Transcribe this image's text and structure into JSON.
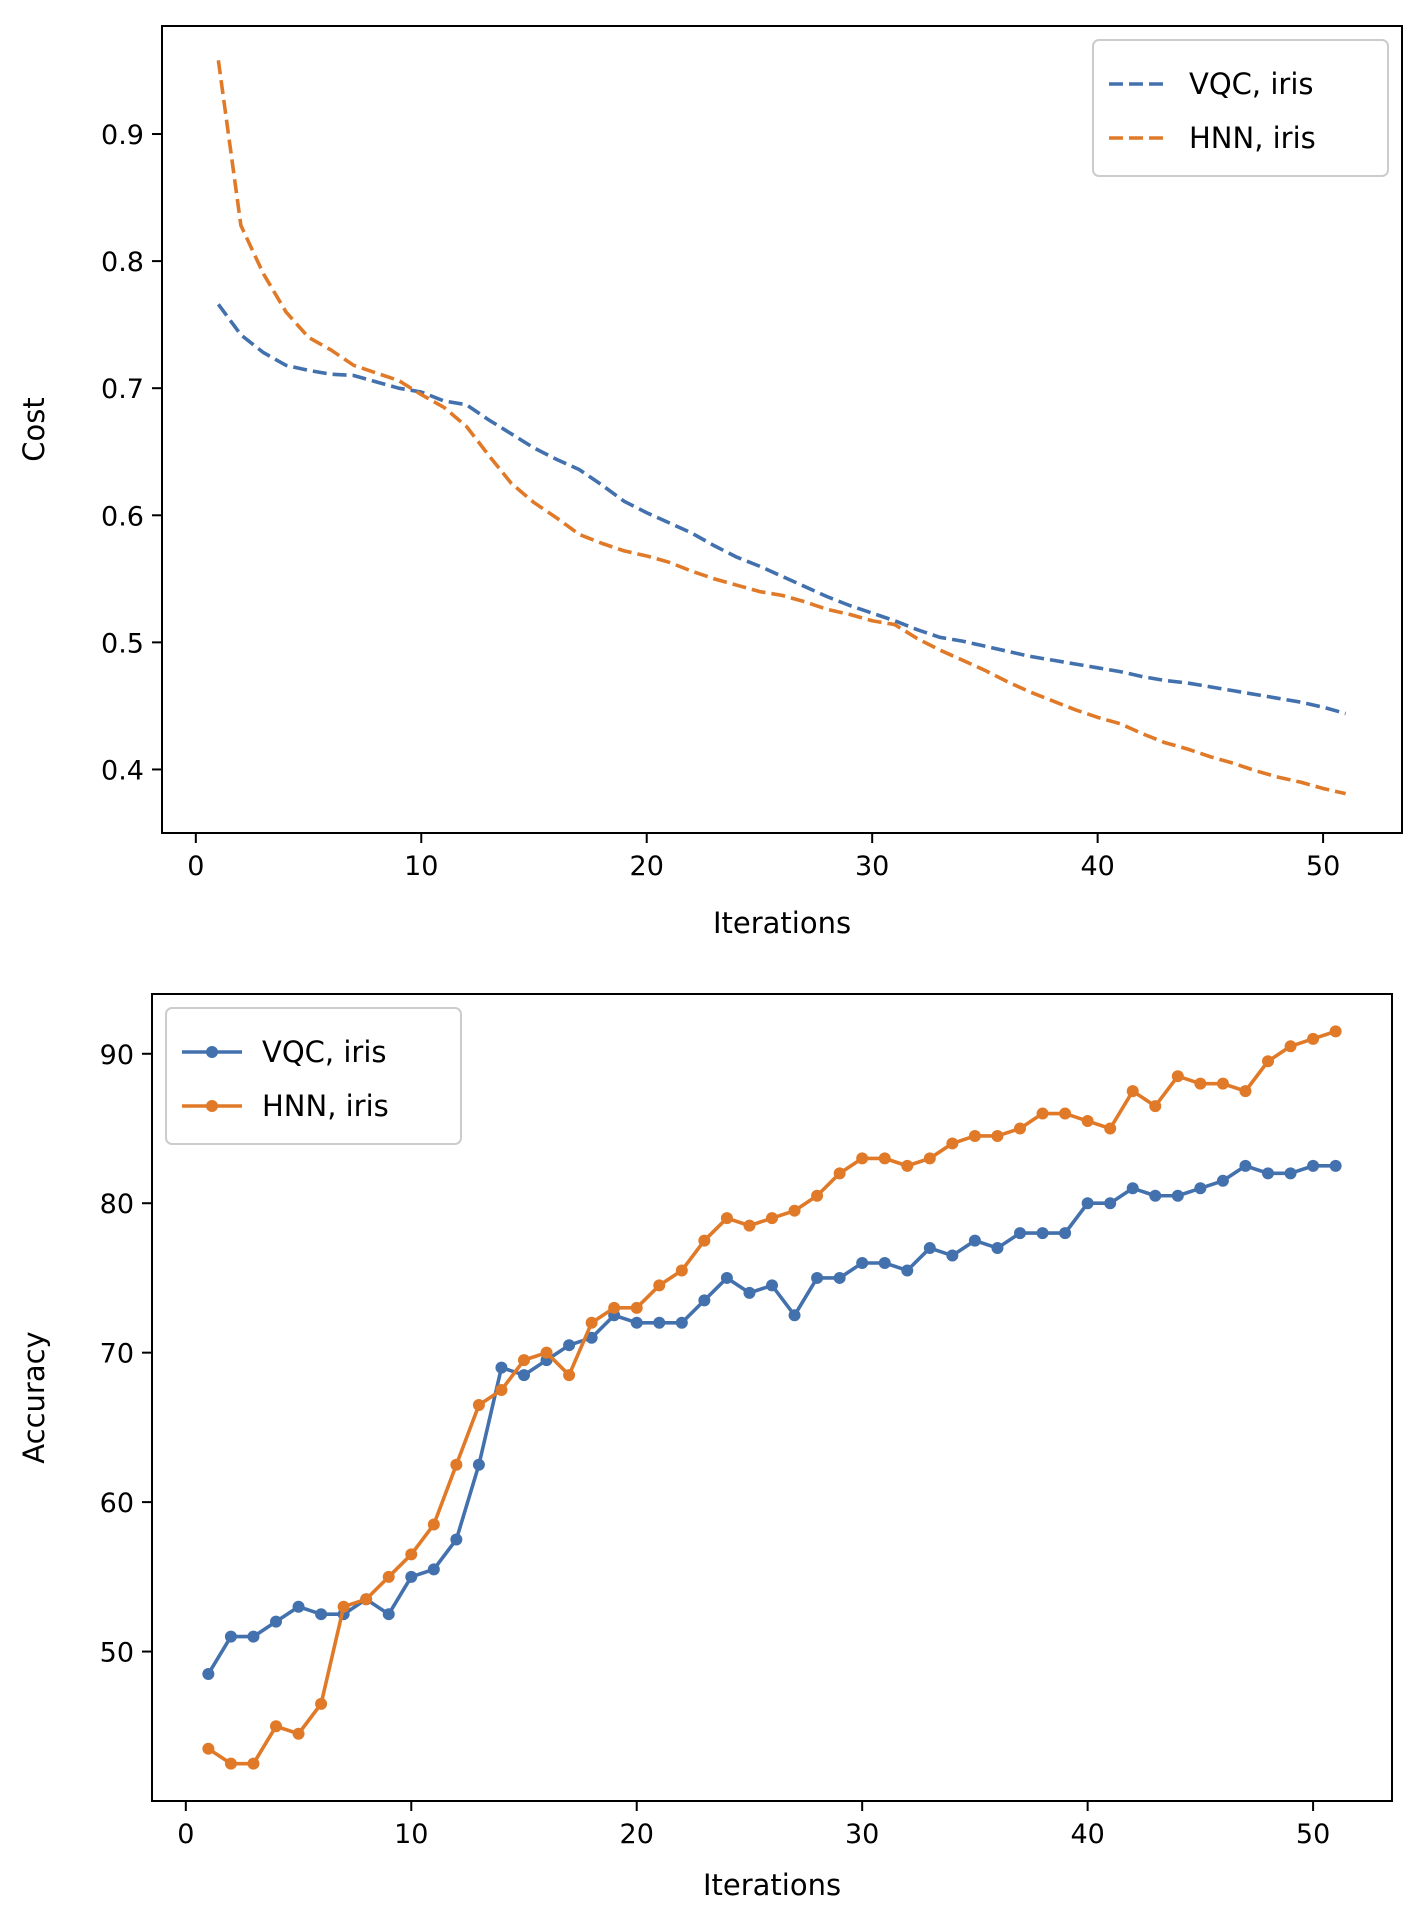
{
  "chart_data": [
    {
      "type": "line",
      "title": "",
      "xlabel": "Iterations",
      "ylabel": "Cost",
      "xlim": [
        -1.5,
        53.5
      ],
      "ylim": [
        0.35,
        0.985
      ],
      "xticks": [
        0,
        10,
        20,
        30,
        40,
        50
      ],
      "yticks": [
        0.4,
        0.5,
        0.6,
        0.7,
        0.8,
        0.9
      ],
      "grid": false,
      "legend_position": "top-right",
      "line_style": "dashed",
      "markers": false,
      "x": [
        1,
        2,
        3,
        4,
        5,
        6,
        7,
        8,
        9,
        10,
        11,
        12,
        13,
        14,
        15,
        16,
        17,
        18,
        19,
        20,
        21,
        22,
        23,
        24,
        25,
        26,
        27,
        28,
        29,
        30,
        31,
        32,
        33,
        34,
        35,
        36,
        37,
        38,
        39,
        40,
        41,
        42,
        43,
        44,
        45,
        46,
        47,
        48,
        49,
        50,
        51
      ],
      "series": [
        {
          "name": "VQC, iris",
          "color": "#4371ad",
          "values": [
            0.766,
            0.742,
            0.728,
            0.718,
            0.714,
            0.711,
            0.71,
            0.705,
            0.7,
            0.697,
            0.69,
            0.687,
            0.675,
            0.664,
            0.653,
            0.644,
            0.636,
            0.624,
            0.611,
            0.602,
            0.594,
            0.586,
            0.576,
            0.567,
            0.56,
            0.552,
            0.544,
            0.536,
            0.529,
            0.523,
            0.517,
            0.51,
            0.504,
            0.501,
            0.497,
            0.493,
            0.489,
            0.486,
            0.483,
            0.48,
            0.477,
            0.473,
            0.47,
            0.468,
            0.465,
            0.462,
            0.459,
            0.456,
            0.453,
            0.449,
            0.444
          ]
        },
        {
          "name": "HNN, iris",
          "color": "#e07a28",
          "values": [
            0.958,
            0.828,
            0.79,
            0.76,
            0.74,
            0.73,
            0.718,
            0.712,
            0.706,
            0.695,
            0.685,
            0.67,
            0.647,
            0.625,
            0.61,
            0.598,
            0.585,
            0.578,
            0.572,
            0.568,
            0.563,
            0.556,
            0.55,
            0.545,
            0.54,
            0.537,
            0.532,
            0.526,
            0.522,
            0.517,
            0.514,
            0.503,
            0.494,
            0.486,
            0.478,
            0.469,
            0.461,
            0.454,
            0.447,
            0.441,
            0.436,
            0.428,
            0.421,
            0.416,
            0.41,
            0.405,
            0.399,
            0.394,
            0.39,
            0.385,
            0.381
          ]
        }
      ]
    },
    {
      "type": "line",
      "title": "",
      "xlabel": "Iterations",
      "ylabel": "Accuracy",
      "xlim": [
        -1.5,
        53.5
      ],
      "ylim": [
        40,
        94
      ],
      "xticks": [
        0,
        10,
        20,
        30,
        40,
        50
      ],
      "yticks": [
        50,
        60,
        70,
        80,
        90
      ],
      "grid": false,
      "legend_position": "top-left",
      "line_style": "solid",
      "markers": true,
      "x": [
        1,
        2,
        3,
        4,
        5,
        6,
        7,
        8,
        9,
        10,
        11,
        12,
        13,
        14,
        15,
        16,
        17,
        18,
        19,
        20,
        21,
        22,
        23,
        24,
        25,
        26,
        27,
        28,
        29,
        30,
        31,
        32,
        33,
        34,
        35,
        36,
        37,
        38,
        39,
        40,
        41,
        42,
        43,
        44,
        45,
        46,
        47,
        48,
        49,
        50,
        51
      ],
      "series": [
        {
          "name": "VQC, iris",
          "color": "#4371ad",
          "values": [
            48.5,
            51,
            51,
            52,
            53,
            52.5,
            52.5,
            53.5,
            52.5,
            55,
            55.5,
            57.5,
            62.5,
            69,
            68.5,
            69.5,
            70.5,
            71,
            72.5,
            72,
            72,
            72,
            73.5,
            75,
            74,
            74.5,
            72.5,
            75,
            75,
            76,
            76,
            75.5,
            77,
            76.5,
            77.5,
            77,
            78,
            78,
            78,
            80,
            80,
            81,
            80.5,
            80.5,
            81,
            81.5,
            82.5,
            82,
            82,
            82.5,
            82.5
          ]
        },
        {
          "name": "HNN, iris",
          "color": "#e07a28",
          "values": [
            43.5,
            42.5,
            42.5,
            45,
            44.5,
            46.5,
            53,
            53.5,
            55,
            56.5,
            58.5,
            62.5,
            66.5,
            67.5,
            69.5,
            70,
            68.5,
            72,
            73,
            73,
            74.5,
            75.5,
            77.5,
            79,
            78.5,
            79,
            79.5,
            80.5,
            82,
            83,
            83,
            82.5,
            83,
            84,
            84.5,
            84.5,
            85,
            86,
            86,
            85.5,
            85,
            87.5,
            86.5,
            88.5,
            88,
            88,
            87.5,
            89.5,
            90.5,
            91,
            91.5
          ]
        }
      ]
    }
  ]
}
